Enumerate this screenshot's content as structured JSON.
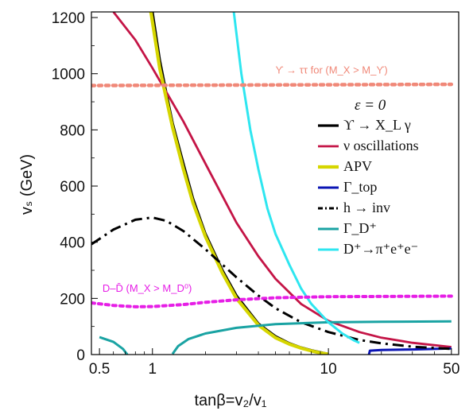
{
  "chart_data": {
    "type": "line",
    "xlabel": "tanβ=v₂/v₁",
    "ylabel": "vₛ (GeV)",
    "x_scale": "log",
    "xlim": [
      0.45,
      55
    ],
    "ylim": [
      0,
      1220
    ],
    "x_ticks": [
      0.5,
      1,
      10,
      50
    ],
    "x_tick_labels": [
      "0.5",
      "1",
      "10",
      "50"
    ],
    "y_ticks": [
      0,
      200,
      400,
      600,
      800,
      1000,
      1200
    ],
    "y_tick_labels": [
      "0",
      "200",
      "400",
      "600",
      "800",
      "1000",
      "1200"
    ],
    "legend_title": "ε = 0",
    "legend_placement": "right",
    "annotations": [
      {
        "text": "ϒ → ττ for (M_X > M_ϒ)",
        "color": "#f08878",
        "x": 5.0,
        "y": 1000
      },
      {
        "text": "D–D̄ (M_X > M_D⁰)",
        "color": "#e61ee6",
        "x": 0.52,
        "y": 224
      }
    ],
    "series": [
      {
        "name": "ϒ → X_L γ",
        "color": "#000000",
        "style": "solid",
        "width": 3.2,
        "segments": [
          [
            [
              1.0,
              1220
            ],
            [
              1.1,
              1050
            ],
            [
              1.2,
              930
            ],
            [
              1.3,
              825
            ],
            [
              1.5,
              680
            ],
            [
              1.7,
              555
            ],
            [
              2.0,
              430
            ],
            [
              2.5,
              300
            ],
            [
              3.0,
              210
            ],
            [
              4.0,
              110
            ],
            [
              5.0,
              65
            ],
            [
              6.0,
              40
            ],
            [
              7.0,
              25
            ],
            [
              8.0,
              15
            ],
            [
              9.0,
              8
            ],
            [
              10.0,
              2
            ]
          ]
        ]
      },
      {
        "name": "ν oscillations",
        "color": "#c41446",
        "style": "solid",
        "width": 2.8,
        "segments": [
          [
            [
              0.6,
              1220
            ],
            [
              0.8,
              1120
            ],
            [
              1.0,
              1020
            ],
            [
              1.5,
              830
            ],
            [
              2.0,
              680
            ],
            [
              3.0,
              470
            ],
            [
              4.0,
              350
            ],
            [
              5.0,
              270
            ],
            [
              7.0,
              180
            ],
            [
              10.0,
              120
            ],
            [
              15.0,
              80
            ],
            [
              20.0,
              60
            ],
            [
              30.0,
              42
            ],
            [
              50.0,
              27
            ]
          ]
        ]
      },
      {
        "name": "APV",
        "color": "#d6d600",
        "style": "solid",
        "width": 4.2,
        "segments": [
          [
            [
              0.98,
              1220
            ],
            [
              1.1,
              1020
            ],
            [
              1.2,
              910
            ],
            [
              1.3,
              810
            ],
            [
              1.5,
              660
            ],
            [
              1.7,
              540
            ],
            [
              2.0,
              420
            ],
            [
              2.5,
              290
            ],
            [
              3.0,
              200
            ],
            [
              4.0,
              105
            ],
            [
              5.0,
              60
            ],
            [
              6.0,
              37
            ],
            [
              7.0,
              23
            ],
            [
              8.0,
              13
            ],
            [
              9.0,
              6
            ],
            [
              10.0,
              1
            ]
          ]
        ]
      },
      {
        "name": "Γ_top",
        "color": "#0a14b4",
        "style": "solid",
        "width": 3.0,
        "segments": [
          [
            [
              17.0,
              0
            ],
            [
              17.2,
              14
            ],
            [
              20.0,
              16
            ],
            [
              30.0,
              18
            ],
            [
              40.0,
              20
            ],
            [
              50.0,
              22
            ]
          ]
        ]
      },
      {
        "name": "h → inv",
        "color": "#000000",
        "style": "dashdot",
        "width": 3.0,
        "segments": [
          [
            [
              0.45,
              393
            ],
            [
              0.6,
              445
            ],
            [
              0.8,
              480
            ],
            [
              1.0,
              488
            ],
            [
              1.2,
              476
            ],
            [
              1.5,
              440
            ],
            [
              2.0,
              375
            ],
            [
              3.0,
              275
            ],
            [
              4.0,
              210
            ],
            [
              5.0,
              165
            ],
            [
              7.0,
              115
            ],
            [
              10.0,
              80
            ],
            [
              15.0,
              52
            ],
            [
              20.0,
              40
            ],
            [
              30.0,
              28
            ],
            [
              50.0,
              20
            ]
          ]
        ]
      },
      {
        "name": "Γ_D⁺",
        "color": "#1aa3a3",
        "style": "solid",
        "width": 3.0,
        "segments": [
          [
            [
              0.5,
              62
            ],
            [
              0.6,
              45
            ],
            [
              0.68,
              20
            ],
            [
              0.72,
              0
            ]
          ],
          [
            [
              1.3,
              2
            ],
            [
              1.4,
              30
            ],
            [
              1.6,
              55
            ],
            [
              2.0,
              75
            ],
            [
              3.0,
              95
            ],
            [
              5.0,
              108
            ],
            [
              10.0,
              115
            ],
            [
              20.0,
              117
            ],
            [
              50.0,
              118
            ]
          ]
        ]
      },
      {
        "name": "D⁺→π⁺e⁺e⁻",
        "color": "#2ee6f0",
        "style": "solid",
        "width": 3.0,
        "segments": [
          [
            [
              2.9,
              1220
            ],
            [
              3.2,
              1000
            ],
            [
              3.6,
              800
            ],
            [
              4.0,
              660
            ],
            [
              4.5,
              520
            ],
            [
              5.0,
              430
            ],
            [
              6.0,
              320
            ],
            [
              7.0,
              235
            ],
            [
              8.0,
              180
            ],
            [
              10.0,
              115
            ],
            [
              12.0,
              75
            ],
            [
              14.0,
              50
            ],
            [
              15.0,
              42
            ]
          ]
        ]
      },
      {
        "name": "ϒ → ττ for (M_X > M_ϒ)",
        "color": "#f08878",
        "style": "dotted",
        "width": 4.5,
        "in_legend": false,
        "segments": [
          [
            [
              0.45,
              958
            ],
            [
              50.0,
              962
            ]
          ]
        ]
      },
      {
        "name": "D–D̄ (M_X > M_D⁰)",
        "color": "#e61ee6",
        "style": "dotted",
        "width": 4.0,
        "in_legend": false,
        "segments": [
          [
            [
              0.45,
              184
            ],
            [
              0.6,
              175
            ],
            [
              0.8,
              170
            ],
            [
              1.0,
              171
            ],
            [
              1.5,
              178
            ],
            [
              2.0,
              186
            ],
            [
              3.0,
              195
            ],
            [
              5.0,
              202
            ],
            [
              10.0,
              206
            ],
            [
              50.0,
              208
            ]
          ]
        ]
      }
    ]
  }
}
